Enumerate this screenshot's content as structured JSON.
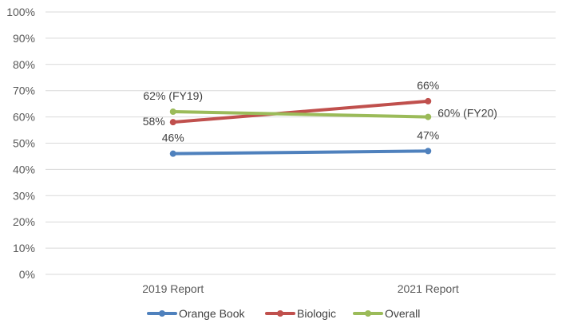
{
  "chart_data": {
    "type": "line",
    "categories": [
      "2019 Report",
      "2021 Report"
    ],
    "series": [
      {
        "name": "Orange Book",
        "values": [
          46,
          47
        ],
        "color": "#4F81BD",
        "labels": [
          "46%",
          "47%"
        ]
      },
      {
        "name": "Biologic",
        "values": [
          58,
          66
        ],
        "color": "#C0504D",
        "labels": [
          "58%",
          "66%"
        ]
      },
      {
        "name": "Overall",
        "values": [
          62,
          60
        ],
        "color": "#9BBB59",
        "labels": [
          "62% (FY19)",
          "60% (FY20)"
        ]
      }
    ],
    "ylim": [
      0,
      100
    ],
    "yticks": [
      "0%",
      "10%",
      "20%",
      "30%",
      "40%",
      "50%",
      "60%",
      "70%",
      "80%",
      "90%",
      "100%"
    ],
    "grid": true,
    "gridColor": "#D9D9D9",
    "legend": "bottom",
    "title": "",
    "xlabel": "",
    "ylabel": ""
  }
}
